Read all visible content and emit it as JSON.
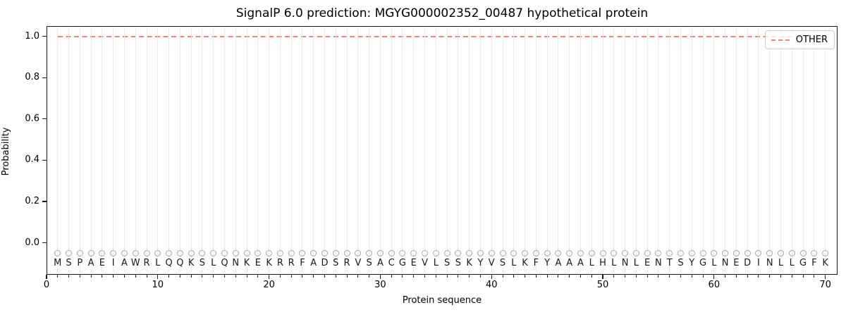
{
  "figure": {
    "background": "#ffffff",
    "frame_color": "#1a1a1a"
  },
  "chart_data": {
    "type": "line",
    "title": "SignalP 6.0 prediction: MGYG000002352_00487 hypothetical protein",
    "xlabel": "Protein sequence",
    "ylabel": "Probability",
    "xlim": [
      0,
      71.1
    ],
    "ylim": [
      -0.155,
      1.05
    ],
    "x_major_ticks": [
      0,
      10,
      20,
      30,
      40,
      50,
      60,
      70
    ],
    "x_minor_ticks_every_residue": true,
    "y_ticks": [
      0.0,
      0.2,
      0.4,
      0.6,
      0.8,
      1.0
    ],
    "grid": {
      "vertical_line_per_residue": true,
      "color": "#ececec",
      "horizontal": false
    },
    "series": [
      {
        "name": "OTHER",
        "color": "#f2827f",
        "linestyle": "dashed",
        "x_start": 1,
        "x_end": 70,
        "constant_y": 1.0,
        "description": "flat dashed line at probability 1.0 for all 70 residues"
      }
    ],
    "sequence": "MSPAEIAWRLQQKSLQNKEKRRFADSRVSACGEVLSSKYVSLKFYAAALHLNLENTSYGLNEDINLLGFK",
    "sequence_length": 70,
    "marker": {
      "shape": "open-circle",
      "color": "#a5a5a5",
      "y": -0.05
    },
    "letters_y": -0.1,
    "legend": {
      "position": "upper right",
      "entries": [
        {
          "label": "OTHER",
          "color": "#f2827f",
          "linestyle": "dashed"
        }
      ]
    }
  }
}
